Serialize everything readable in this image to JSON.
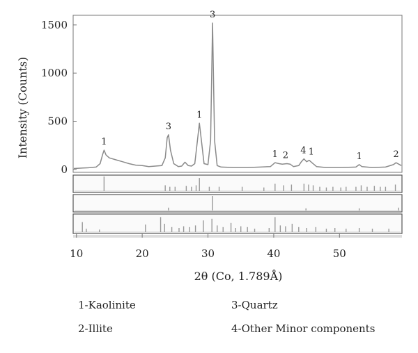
{
  "chart_data": {
    "type": "line",
    "ylabel": "Intensity (Counts)",
    "xlabel": "2θ (Co, 1.789Å)",
    "xlim": [
      9.5,
      59.5
    ],
    "ylim": [
      -30,
      1600
    ],
    "x_ticks": [
      10,
      20,
      30,
      40,
      50
    ],
    "y_ticks": [
      0,
      500,
      1000,
      1500
    ],
    "grid": false,
    "series": [
      {
        "values": [
          [
            9.6,
            10
          ],
          [
            11,
            15
          ],
          [
            12,
            18
          ],
          [
            13,
            25
          ],
          [
            13.6,
            60
          ],
          [
            14.0,
            160
          ],
          [
            14.2,
            200
          ],
          [
            14.5,
            150
          ],
          [
            15,
            120
          ],
          [
            16,
            100
          ],
          [
            17,
            80
          ],
          [
            18,
            60
          ],
          [
            19,
            45
          ],
          [
            20,
            40
          ],
          [
            21,
            30
          ],
          [
            22,
            35
          ],
          [
            23,
            40
          ],
          [
            23.5,
            120
          ],
          [
            23.8,
            330
          ],
          [
            24.0,
            360
          ],
          [
            24.3,
            200
          ],
          [
            24.8,
            60
          ],
          [
            25.5,
            30
          ],
          [
            26.0,
            35
          ],
          [
            26.5,
            75
          ],
          [
            27.0,
            40
          ],
          [
            27.5,
            35
          ],
          [
            28.0,
            60
          ],
          [
            28.4,
            300
          ],
          [
            28.7,
            480
          ],
          [
            29.0,
            300
          ],
          [
            29.4,
            60
          ],
          [
            30.0,
            50
          ],
          [
            30.4,
            300
          ],
          [
            30.7,
            1520
          ],
          [
            31.0,
            300
          ],
          [
            31.4,
            40
          ],
          [
            32,
            25
          ],
          [
            34,
            20
          ],
          [
            36,
            20
          ],
          [
            38,
            25
          ],
          [
            39.5,
            30
          ],
          [
            40.2,
            70
          ],
          [
            40.8,
            60
          ],
          [
            41.3,
            55
          ],
          [
            42,
            60
          ],
          [
            42.5,
            55
          ],
          [
            43,
            30
          ],
          [
            43.8,
            40
          ],
          [
            44.2,
            80
          ],
          [
            44.6,
            110
          ],
          [
            45.0,
            80
          ],
          [
            45.4,
            95
          ],
          [
            45.8,
            70
          ],
          [
            46.5,
            30
          ],
          [
            48,
            20
          ],
          [
            50,
            20
          ],
          [
            52.5,
            25
          ],
          [
            53.0,
            50
          ],
          [
            53.4,
            30
          ],
          [
            55,
            20
          ],
          [
            57,
            25
          ],
          [
            58.2,
            50
          ],
          [
            58.6,
            70
          ],
          [
            59.0,
            55
          ],
          [
            59.4,
            40
          ]
        ]
      }
    ],
    "peak_labels": [
      {
        "x": 14.2,
        "y": 200,
        "text": "1"
      },
      {
        "x": 24.0,
        "y": 360,
        "text": "3"
      },
      {
        "x": 28.7,
        "y": 480,
        "text": "1"
      },
      {
        "x": 30.7,
        "y": 1520,
        "text": "3"
      },
      {
        "x": 40.2,
        "y": 70,
        "text": "1"
      },
      {
        "x": 41.8,
        "y": 60,
        "text": "2"
      },
      {
        "x": 44.5,
        "y": 110,
        "text": "4"
      },
      {
        "x": 45.7,
        "y": 95,
        "text": "1"
      },
      {
        "x": 53.0,
        "y": 50,
        "text": "1"
      },
      {
        "x": 58.6,
        "y": 70,
        "text": "2"
      }
    ],
    "reference_panels": [
      {
        "sticks": [
          [
            14.2,
            1.0
          ],
          [
            23.5,
            0.4
          ],
          [
            24.2,
            0.3
          ],
          [
            25.0,
            0.3
          ],
          [
            26.7,
            0.35
          ],
          [
            27.5,
            0.3
          ],
          [
            28.2,
            0.4
          ],
          [
            28.7,
            0.9
          ],
          [
            30.2,
            0.3
          ],
          [
            31.7,
            0.3
          ],
          [
            35.2,
            0.3
          ],
          [
            38.5,
            0.25
          ],
          [
            40.2,
            0.5
          ],
          [
            41.5,
            0.4
          ],
          [
            42.7,
            0.45
          ],
          [
            44.6,
            0.5
          ],
          [
            45.3,
            0.45
          ],
          [
            46.0,
            0.4
          ],
          [
            47.0,
            0.3
          ],
          [
            48.0,
            0.25
          ],
          [
            49.0,
            0.3
          ],
          [
            50.2,
            0.25
          ],
          [
            51.0,
            0.3
          ],
          [
            52.5,
            0.3
          ],
          [
            53.3,
            0.4
          ],
          [
            54.2,
            0.3
          ],
          [
            55.3,
            0.35
          ],
          [
            56.2,
            0.3
          ],
          [
            57.0,
            0.3
          ],
          [
            58.5,
            0.45
          ]
        ]
      },
      {
        "sticks": [
          [
            24.0,
            0.2
          ],
          [
            30.7,
            1.0
          ],
          [
            44.9,
            0.15
          ],
          [
            53.0,
            0.15
          ],
          [
            59.0,
            0.2
          ]
        ]
      },
      {
        "sticks": [
          [
            10.9,
            0.6
          ],
          [
            11.5,
            0.2
          ],
          [
            13.5,
            0.15
          ],
          [
            20.5,
            0.45
          ],
          [
            22.8,
            0.9
          ],
          [
            23.4,
            0.5
          ],
          [
            24.5,
            0.3
          ],
          [
            25.6,
            0.25
          ],
          [
            26.3,
            0.35
          ],
          [
            27.2,
            0.3
          ],
          [
            28.1,
            0.4
          ],
          [
            29.3,
            0.7
          ],
          [
            30.6,
            0.8
          ],
          [
            31.4,
            0.4
          ],
          [
            32.3,
            0.3
          ],
          [
            33.5,
            0.55
          ],
          [
            34.2,
            0.25
          ],
          [
            35.0,
            0.35
          ],
          [
            36.0,
            0.3
          ],
          [
            37.1,
            0.2
          ],
          [
            39.3,
            0.25
          ],
          [
            40.2,
            0.9
          ],
          [
            41.0,
            0.4
          ],
          [
            41.8,
            0.35
          ],
          [
            42.8,
            0.5
          ],
          [
            43.8,
            0.3
          ],
          [
            45.0,
            0.25
          ],
          [
            46.4,
            0.3
          ],
          [
            48.0,
            0.2
          ],
          [
            49.3,
            0.25
          ],
          [
            51.0,
            0.2
          ],
          [
            53.0,
            0.25
          ],
          [
            55.0,
            0.2
          ],
          [
            57.5,
            0.2
          ]
        ]
      }
    ]
  },
  "legend": {
    "items": [
      "1-Kaolinite",
      "3-Quartz",
      "2-Illite",
      "4-Other Minor components"
    ]
  },
  "colors": {
    "pattern_line": "#8a8a8a",
    "frame": "#777777",
    "stick": "#999999",
    "panel_border": "#555555"
  }
}
